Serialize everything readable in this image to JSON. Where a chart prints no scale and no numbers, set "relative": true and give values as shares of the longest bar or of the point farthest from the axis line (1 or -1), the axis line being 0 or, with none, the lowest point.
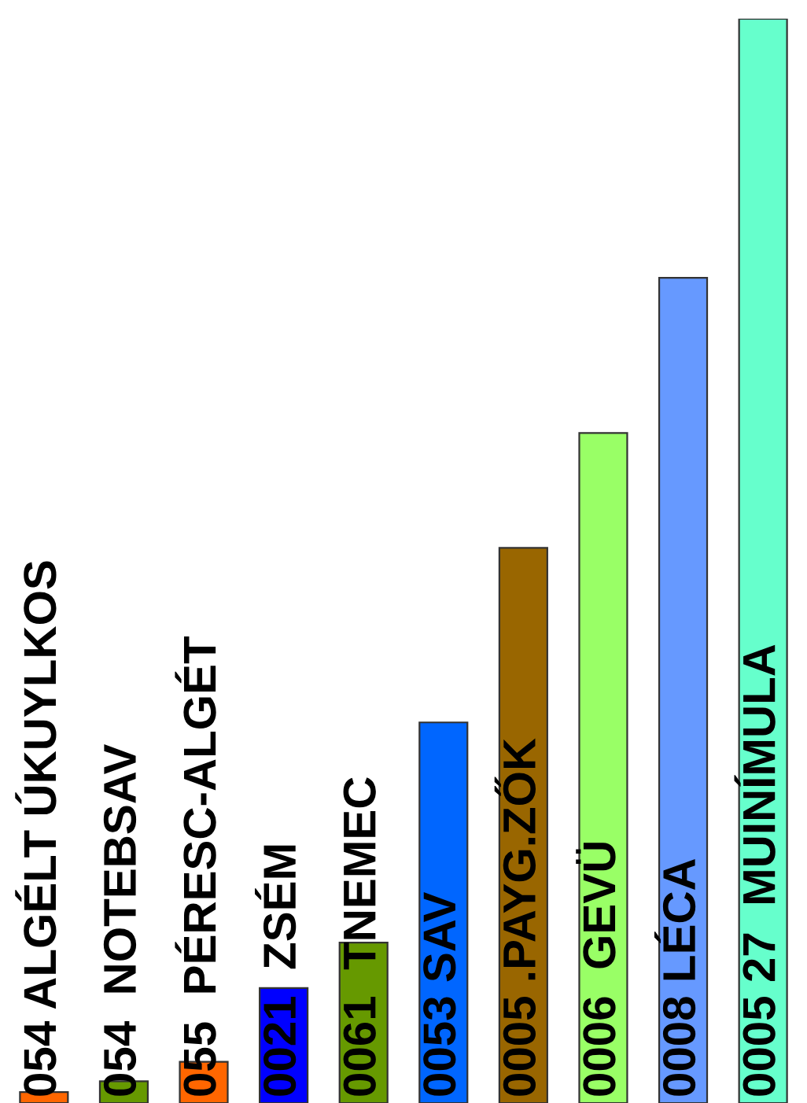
{
  "chart_data": {
    "type": "bar",
    "relative": true,
    "categories": [
      "054 ALGÉLT ÚKUYLKOS",
      "054  NOTEBSAV",
      "055  PÉRESC-ALGÉT",
      "0021  ZSÉM",
      "0061  TNEMEC",
      "0053 SAV",
      "0005 .PAYG.ZŐK",
      "0006  GEVÜ",
      "0008 LÉCA",
      "0005 27  MUINÍMULA"
    ],
    "values": [
      0.01,
      0.02,
      0.038,
      0.106,
      0.148,
      0.351,
      0.512,
      0.618,
      0.761,
      1
    ],
    "colors": [
      "#ff6600",
      "#669900",
      "#ff6600",
      "#0000ff",
      "#669900",
      "#0066ff",
      "#996600",
      "#99ff66",
      "#6699ff",
      "#66ffcc"
    ]
  }
}
